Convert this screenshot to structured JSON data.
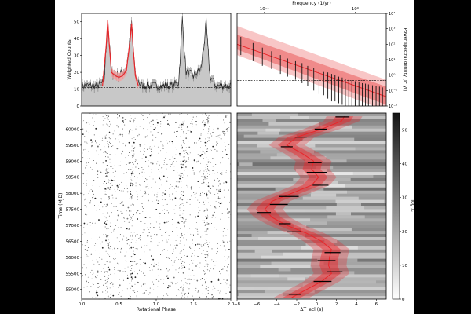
{
  "theme": {
    "bg": "#000000",
    "panel": "#ffffff",
    "red": "#e8262a",
    "red_light": "#f4a2a2",
    "gray_fill": "#c8c8c8",
    "dark": "#222222"
  },
  "chart_data": [
    {
      "id": "profile",
      "type": "line",
      "title": "",
      "xlabel": "",
      "ylabel": "Weighted Counts",
      "xlim": [
        0,
        2
      ],
      "ylim": [
        0,
        55
      ],
      "yticks": [
        0,
        10,
        20,
        30,
        40,
        50
      ],
      "baseline": 11,
      "series": [
        {
          "name": "pulse profile (grey)",
          "phase": [
            0.0,
            0.1,
            0.2,
            0.3,
            0.33,
            0.35,
            0.37,
            0.4,
            0.45,
            0.5,
            0.55,
            0.6,
            0.65,
            0.67,
            0.69,
            0.72,
            0.8,
            0.9,
            1.0,
            1.1,
            1.2,
            1.3,
            1.33,
            1.35,
            1.37,
            1.4,
            1.45,
            1.5,
            1.55,
            1.6,
            1.65,
            1.67,
            1.69,
            1.72,
            1.8,
            1.9,
            2.0
          ],
          "counts": [
            12,
            12,
            12,
            14,
            35,
            52,
            38,
            20,
            19,
            18,
            20,
            22,
            40,
            50,
            36,
            18,
            12,
            12,
            12,
            12,
            12,
            14,
            35,
            52,
            38,
            20,
            19,
            18,
            20,
            22,
            40,
            50,
            36,
            18,
            12,
            12,
            12
          ]
        },
        {
          "name": "model (red)",
          "phase": [
            0.28,
            0.33,
            0.35,
            0.37,
            0.4,
            0.45,
            0.5,
            0.55,
            0.6,
            0.65,
            0.67,
            0.69,
            0.72,
            0.76
          ],
          "counts": [
            12,
            36,
            51,
            37,
            20,
            18,
            17,
            18,
            21,
            39,
            49,
            35,
            18,
            12
          ]
        }
      ]
    },
    {
      "id": "psd",
      "type": "line",
      "title": "",
      "xlabel": "Frequency (1/yr)",
      "ylabel": "Power spectral density (s² yr)",
      "xscale": "log",
      "yscale": "log",
      "xlim": [
        0.05,
        2.2
      ],
      "ylim": [
        0.01,
        10000
      ],
      "xticks": [
        {
          "v": 0.1,
          "label": "10⁻¹"
        },
        {
          "v": 1,
          "label": "10⁰"
        }
      ],
      "yticks": [
        {
          "v": 10000,
          "label": "10⁴"
        },
        {
          "v": 1000,
          "label": "10³"
        },
        {
          "v": 100,
          "label": "10²"
        },
        {
          "v": 10,
          "label": "10¹"
        },
        {
          "v": 1,
          "label": "10⁰"
        },
        {
          "v": 0.1,
          "label": "10⁻¹"
        },
        {
          "v": 0.01,
          "label": "10⁻²"
        }
      ],
      "white_noise_level": 0.45,
      "model": {
        "freq": [
          0.05,
          2.2
        ],
        "psd": [
          100,
          0.04
        ]
      },
      "band_outer": {
        "freq": [
          0.05,
          2.2
        ],
        "lo": [
          20,
          0.005
        ],
        "hi": [
          1500,
          0.5
        ]
      },
      "band_inner": {
        "freq": [
          0.05,
          2.2
        ],
        "lo": [
          45,
          0.012
        ],
        "hi": [
          420,
          0.18
        ]
      },
      "points": [
        {
          "f": 0.055,
          "lo": 20,
          "hi": 300
        },
        {
          "f": 0.075,
          "lo": 8,
          "hi": 120
        },
        {
          "f": 0.095,
          "lo": 4,
          "hi": 60
        },
        {
          "f": 0.12,
          "lo": 2.5,
          "hi": 35
        },
        {
          "f": 0.15,
          "lo": 1.2,
          "hi": 20
        },
        {
          "f": 0.18,
          "lo": 0.8,
          "hi": 12
        },
        {
          "f": 0.22,
          "lo": 0.5,
          "hi": 8
        },
        {
          "f": 0.26,
          "lo": 0.3,
          "hi": 6
        },
        {
          "f": 0.3,
          "lo": 0.2,
          "hi": 4
        },
        {
          "f": 0.35,
          "lo": 0.1,
          "hi": 3
        },
        {
          "f": 0.4,
          "lo": 0.06,
          "hi": 2
        },
        {
          "f": 0.45,
          "lo": 0.05,
          "hi": 1.6
        },
        {
          "f": 0.5,
          "lo": 0.03,
          "hi": 1.5
        },
        {
          "f": 0.55,
          "lo": 0.02,
          "hi": 1.2
        },
        {
          "f": 0.6,
          "lo": 0.02,
          "hi": 1.0
        },
        {
          "f": 0.66,
          "lo": 0.015,
          "hi": 0.8
        },
        {
          "f": 0.72,
          "lo": 0.012,
          "hi": 0.7
        },
        {
          "f": 0.78,
          "lo": 0.01,
          "hi": 0.6
        },
        {
          "f": 0.85,
          "lo": 0.01,
          "hi": 0.5
        },
        {
          "f": 0.92,
          "lo": 0.01,
          "hi": 0.45
        },
        {
          "f": 1.0,
          "lo": 0.01,
          "hi": 0.4
        },
        {
          "f": 1.1,
          "lo": 0.01,
          "hi": 0.35
        },
        {
          "f": 1.2,
          "lo": 0.01,
          "hi": 0.3
        },
        {
          "f": 1.3,
          "lo": 0.01,
          "hi": 0.28
        },
        {
          "f": 1.4,
          "lo": 0.01,
          "hi": 0.25
        },
        {
          "f": 1.55,
          "lo": 0.01,
          "hi": 0.22
        },
        {
          "f": 1.7,
          "lo": 0.01,
          "hi": 0.2
        },
        {
          "f": 1.85,
          "lo": 0.01,
          "hi": 0.18
        },
        {
          "f": 2.0,
          "lo": 0.01,
          "hi": 0.16
        }
      ]
    },
    {
      "id": "phaseogram",
      "type": "scatter",
      "title": "",
      "xlabel": "Rotational Phase",
      "ylabel": "Time (MJD)",
      "xlim": [
        0,
        2
      ],
      "ylim": [
        54700,
        60500
      ],
      "xticks": [
        0.0,
        0.5,
        1.0,
        1.5,
        2.0
      ],
      "xtick_labels": [
        "0.0",
        "0.5",
        "1.0",
        "1.5",
        "2.0"
      ],
      "yticks": [
        55000,
        55500,
        56000,
        56500,
        57000,
        57500,
        58000,
        58500,
        59000,
        59500,
        60000
      ],
      "pulse_phases": [
        0.35,
        0.67,
        1.35,
        1.67
      ],
      "note": "photon events plotted as dots; denser near pulse phases"
    },
    {
      "id": "delay",
      "type": "heatmap",
      "title": "",
      "xlabel": "ΔT_ecl (s)",
      "ylabel": "",
      "xlim": [
        -8,
        7
      ],
      "ylim": [
        54700,
        60500
      ],
      "xticks": [
        -8,
        -6,
        -4,
        -2,
        0,
        2,
        4,
        6
      ],
      "xtick_labels": [
        "−8",
        "−6",
        "−4",
        "−2",
        "0",
        "2",
        "4",
        "6"
      ],
      "colorbar": {
        "label": "log ℒ",
        "ticks": [
          0,
          10,
          20,
          30,
          40,
          50
        ],
        "range": [
          0,
          55
        ]
      },
      "track": {
        "mjd": [
          54750,
          55000,
          55250,
          55500,
          55750,
          56000,
          56250,
          56500,
          56750,
          57000,
          57250,
          57500,
          57750,
          58000,
          58250,
          58500,
          58750,
          59000,
          59250,
          59500,
          59750,
          60000,
          60250,
          60400
        ],
        "delay": [
          -2.5,
          -1.0,
          0.5,
          1.5,
          1.2,
          1.3,
          1.5,
          0.5,
          -1.0,
          -3.0,
          -4.5,
          -5.2,
          -4.5,
          -2.5,
          -0.5,
          0.2,
          -0.5,
          -0.3,
          -1.5,
          -3.0,
          -2.0,
          0.5,
          2.5,
          2.8
        ]
      },
      "measurements": [
        {
          "mjd": 54850,
          "delay": -2.2,
          "err": 0.6
        },
        {
          "mjd": 55250,
          "delay": 0.6,
          "err": 0.9
        },
        {
          "mjd": 55550,
          "delay": 1.8,
          "err": 0.8
        },
        {
          "mjd": 55900,
          "delay": 1.0,
          "err": 0.9
        },
        {
          "mjd": 56150,
          "delay": 1.6,
          "err": 0.8
        },
        {
          "mjd": 56800,
          "delay": -2.3,
          "err": 0.7
        },
        {
          "mjd": 57050,
          "delay": -3.2,
          "err": 0.6
        },
        {
          "mjd": 57400,
          "delay": -5.3,
          "err": 0.7
        },
        {
          "mjd": 57650,
          "delay": -3.8,
          "err": 0.9
        },
        {
          "mjd": 57900,
          "delay": -2.8,
          "err": 1.0
        },
        {
          "mjd": 58250,
          "delay": 0.4,
          "err": 0.8
        },
        {
          "mjd": 58650,
          "delay": 0.0,
          "err": 1.0
        },
        {
          "mjd": 58950,
          "delay": -0.2,
          "err": 0.7
        },
        {
          "mjd": 59450,
          "delay": -3.0,
          "err": 0.6
        },
        {
          "mjd": 59750,
          "delay": -1.6,
          "err": 0.6
        },
        {
          "mjd": 60000,
          "delay": 0.4,
          "err": 0.6
        },
        {
          "mjd": 60380,
          "delay": 2.6,
          "err": 0.7
        }
      ]
    }
  ]
}
